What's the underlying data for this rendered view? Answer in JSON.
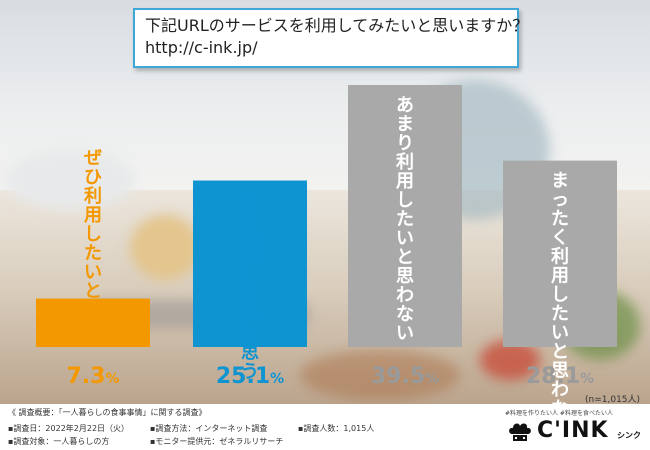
{
  "question": {
    "line1": "下記URLのサービスを利用してみたいと思いますか？",
    "line2": "http://c-ink.jp/"
  },
  "chart_data": {
    "type": "bar",
    "categories": [
      "ぜひ利用したいと思う",
      "まあ利用したいと思う",
      "あまり利用したいと思わない",
      "まったく利用したいと思わない"
    ],
    "values": [
      7.3,
      25.1,
      39.5,
      28.1
    ],
    "value_labels": [
      {
        "main": "7.3",
        "unit": "%"
      },
      {
        "main": "25.1",
        "unit": "%"
      },
      {
        "main": "39.5",
        "unit": "%"
      },
      {
        "main": "28.1",
        "unit": "%"
      }
    ],
    "colors": [
      "#f39800",
      "#0f94d2",
      "#a9a9a9",
      "#a9a9a9"
    ],
    "label_colors": [
      "#f39800",
      "#0f94d2",
      "#ffffff",
      "#ffffff"
    ],
    "pct_colors": [
      "#f39800",
      "#0f94d2",
      "#9a9a9a",
      "#9a9a9a"
    ],
    "ylim": [
      0,
      39.5
    ],
    "n_note": "(n=1,015人)"
  },
  "footer": {
    "title": "《 調査概要：「一人暮らしの食事事情」に関する調査》",
    "date": "▪調査日：2022年2月22日（火）",
    "method": "▪調査方法：インターネット調査",
    "count": "▪調査人数：1,015人",
    "target": "▪調査対象：一人暮らしの方",
    "provider": "▪モニター提供元：ゼネラルリサーチ"
  },
  "logo": {
    "tagline": "#料理を作りたい人 #料理を食べたい人",
    "word": "C'INK",
    "sub": "シンク"
  }
}
